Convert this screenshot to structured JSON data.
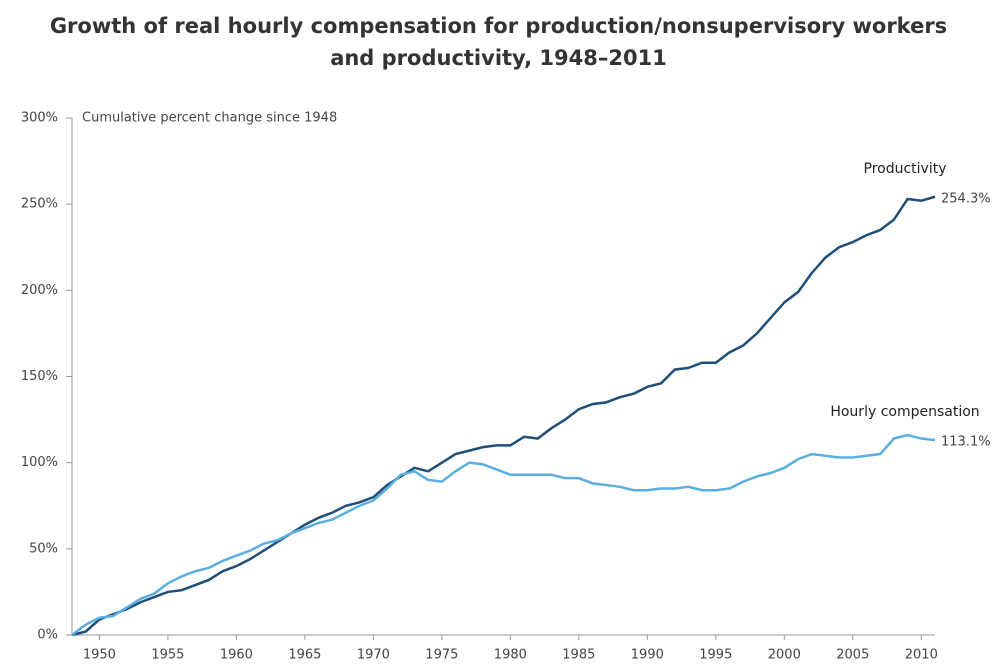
{
  "chart_data": {
    "type": "line",
    "title": "Growth of real hourly compensation for production/nonsupervisory workers and productivity, 1948–2011",
    "y_label": "Cumulative percent change since 1948",
    "x": [
      1948,
      1949,
      1950,
      1951,
      1952,
      1953,
      1954,
      1955,
      1956,
      1957,
      1958,
      1959,
      1960,
      1961,
      1962,
      1963,
      1964,
      1965,
      1966,
      1967,
      1968,
      1969,
      1970,
      1971,
      1972,
      1973,
      1974,
      1975,
      1976,
      1977,
      1978,
      1979,
      1980,
      1981,
      1982,
      1983,
      1984,
      1985,
      1986,
      1987,
      1988,
      1989,
      1990,
      1991,
      1992,
      1993,
      1994,
      1995,
      1996,
      1997,
      1998,
      1999,
      2000,
      2001,
      2002,
      2003,
      2004,
      2005,
      2006,
      2007,
      2008,
      2009,
      2010,
      2011
    ],
    "series": [
      {
        "name": "Productivity",
        "color": "#1f4e79",
        "values": [
          0,
          2,
          9,
          12,
          15,
          19,
          22,
          25,
          26,
          29,
          32,
          37,
          40,
          44,
          49,
          54,
          59,
          64,
          68,
          71,
          75,
          77,
          80,
          87,
          92,
          97,
          95,
          100,
          105,
          107,
          109,
          110,
          110,
          115,
          114,
          120,
          125,
          131,
          134,
          135,
          138,
          140,
          144,
          146,
          154,
          155,
          158,
          158,
          164,
          168,
          175,
          184,
          193,
          199,
          210,
          219,
          225,
          228,
          232,
          235,
          241,
          253,
          252,
          254.3
        ],
        "value_labels": [
          null,
          null,
          null,
          null,
          null,
          null,
          null,
          null,
          null,
          null,
          null,
          null,
          null,
          null,
          null,
          null,
          null,
          null,
          null,
          null,
          null,
          null,
          null,
          null,
          null,
          null,
          null,
          null,
          null,
          null,
          null,
          null,
          null,
          null,
          null,
          null,
          null,
          null,
          null,
          null,
          null,
          null,
          null,
          null,
          null,
          null,
          null,
          null,
          null,
          null,
          null,
          null,
          null,
          null,
          null,
          null,
          null,
          null,
          null,
          null,
          null,
          null,
          null,
          "254.3%"
        ]
      },
      {
        "name": "Hourly compensation",
        "color": "#5aaee0",
        "values": [
          0,
          6,
          10,
          11,
          16,
          21,
          24,
          30,
          34,
          37,
          39,
          43,
          46,
          49,
          53,
          55,
          59,
          62,
          65,
          67,
          71,
          75,
          78,
          85,
          93,
          95,
          90,
          89,
          95,
          100,
          99,
          96,
          93,
          93,
          93,
          93,
          91,
          91,
          88,
          87,
          86,
          84,
          84,
          85,
          85,
          86,
          84,
          84,
          85,
          89,
          92,
          94,
          97,
          102,
          105,
          104,
          103,
          103,
          104,
          105,
          114,
          116,
          114,
          113.1
        ],
        "value_labels": [
          null,
          null,
          null,
          null,
          null,
          null,
          null,
          null,
          null,
          null,
          null,
          null,
          null,
          null,
          null,
          null,
          null,
          null,
          null,
          null,
          null,
          null,
          null,
          null,
          null,
          null,
          null,
          null,
          null,
          null,
          null,
          null,
          null,
          null,
          null,
          null,
          null,
          null,
          null,
          null,
          null,
          null,
          null,
          null,
          null,
          null,
          null,
          null,
          null,
          null,
          null,
          null,
          null,
          null,
          null,
          null,
          null,
          null,
          null,
          null,
          null,
          null,
          null,
          "113.1%"
        ]
      }
    ],
    "xlim": [
      1948,
      2011
    ],
    "xticks": [
      1950,
      1955,
      1960,
      1965,
      1970,
      1975,
      1980,
      1985,
      1990,
      1995,
      2000,
      2005,
      2010
    ],
    "ylim": [
      0,
      300
    ],
    "yticks": [
      {
        "value": 0,
        "label": "0%"
      },
      {
        "value": 50,
        "label": "50%"
      },
      {
        "value": 100,
        "label": "100%"
      },
      {
        "value": 150,
        "label": "150%"
      },
      {
        "value": 200,
        "label": "200%"
      },
      {
        "value": 250,
        "label": "250%"
      },
      {
        "value": 300,
        "label": "300%"
      }
    ],
    "grid": false
  }
}
